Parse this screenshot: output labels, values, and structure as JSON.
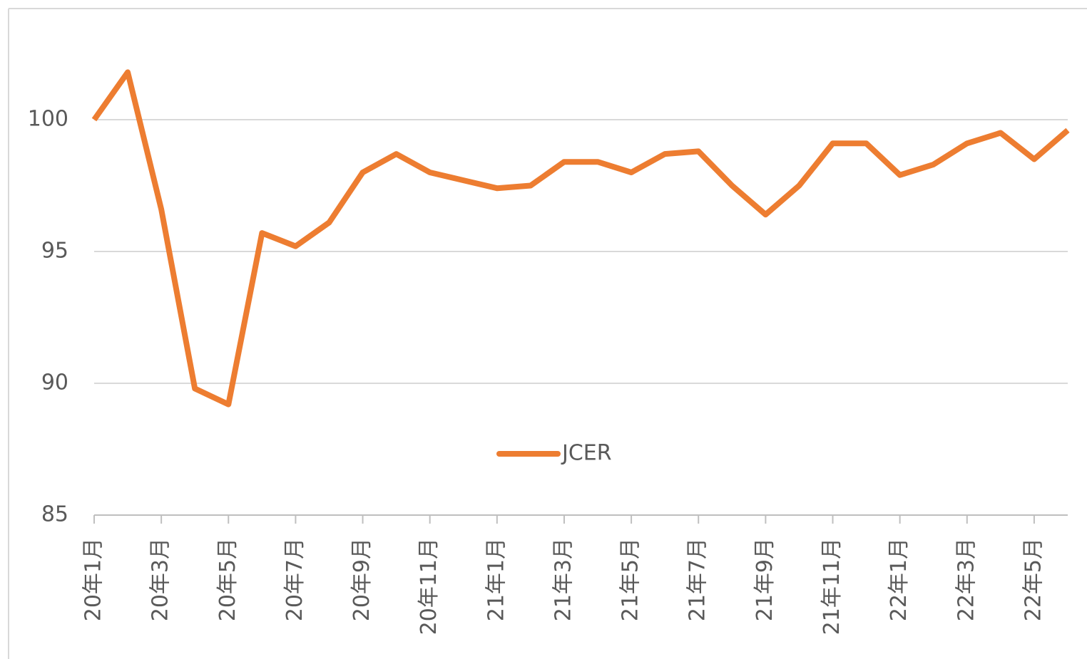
{
  "chart_data": {
    "type": "line",
    "categories": [
      "20年1月",
      null,
      "20年3月",
      null,
      "20年5月",
      null,
      "20年7月",
      null,
      "20年9月",
      null,
      "20年11月",
      null,
      "21年1月",
      null,
      "21年3月",
      null,
      "21年5月",
      null,
      "21年7月",
      null,
      "21年9月",
      null,
      "21年11月",
      null,
      "22年1月",
      null,
      "22年3月",
      null,
      "22年5月",
      null
    ],
    "series": [
      {
        "name": "JCER",
        "color": "#ed7d31",
        "values": [
          100.0,
          101.8,
          96.6,
          89.8,
          89.2,
          95.7,
          95.2,
          96.1,
          98.0,
          98.7,
          98.0,
          97.7,
          97.4,
          97.5,
          98.4,
          98.4,
          98.0,
          98.7,
          98.8,
          97.5,
          96.4,
          97.5,
          99.1,
          99.1,
          97.9,
          98.3,
          99.1,
          99.5,
          98.5,
          99.6
        ]
      }
    ],
    "ylim": [
      85,
      103
    ],
    "yticks": [
      85,
      90,
      95,
      100
    ],
    "grid": true,
    "legend": "center"
  }
}
